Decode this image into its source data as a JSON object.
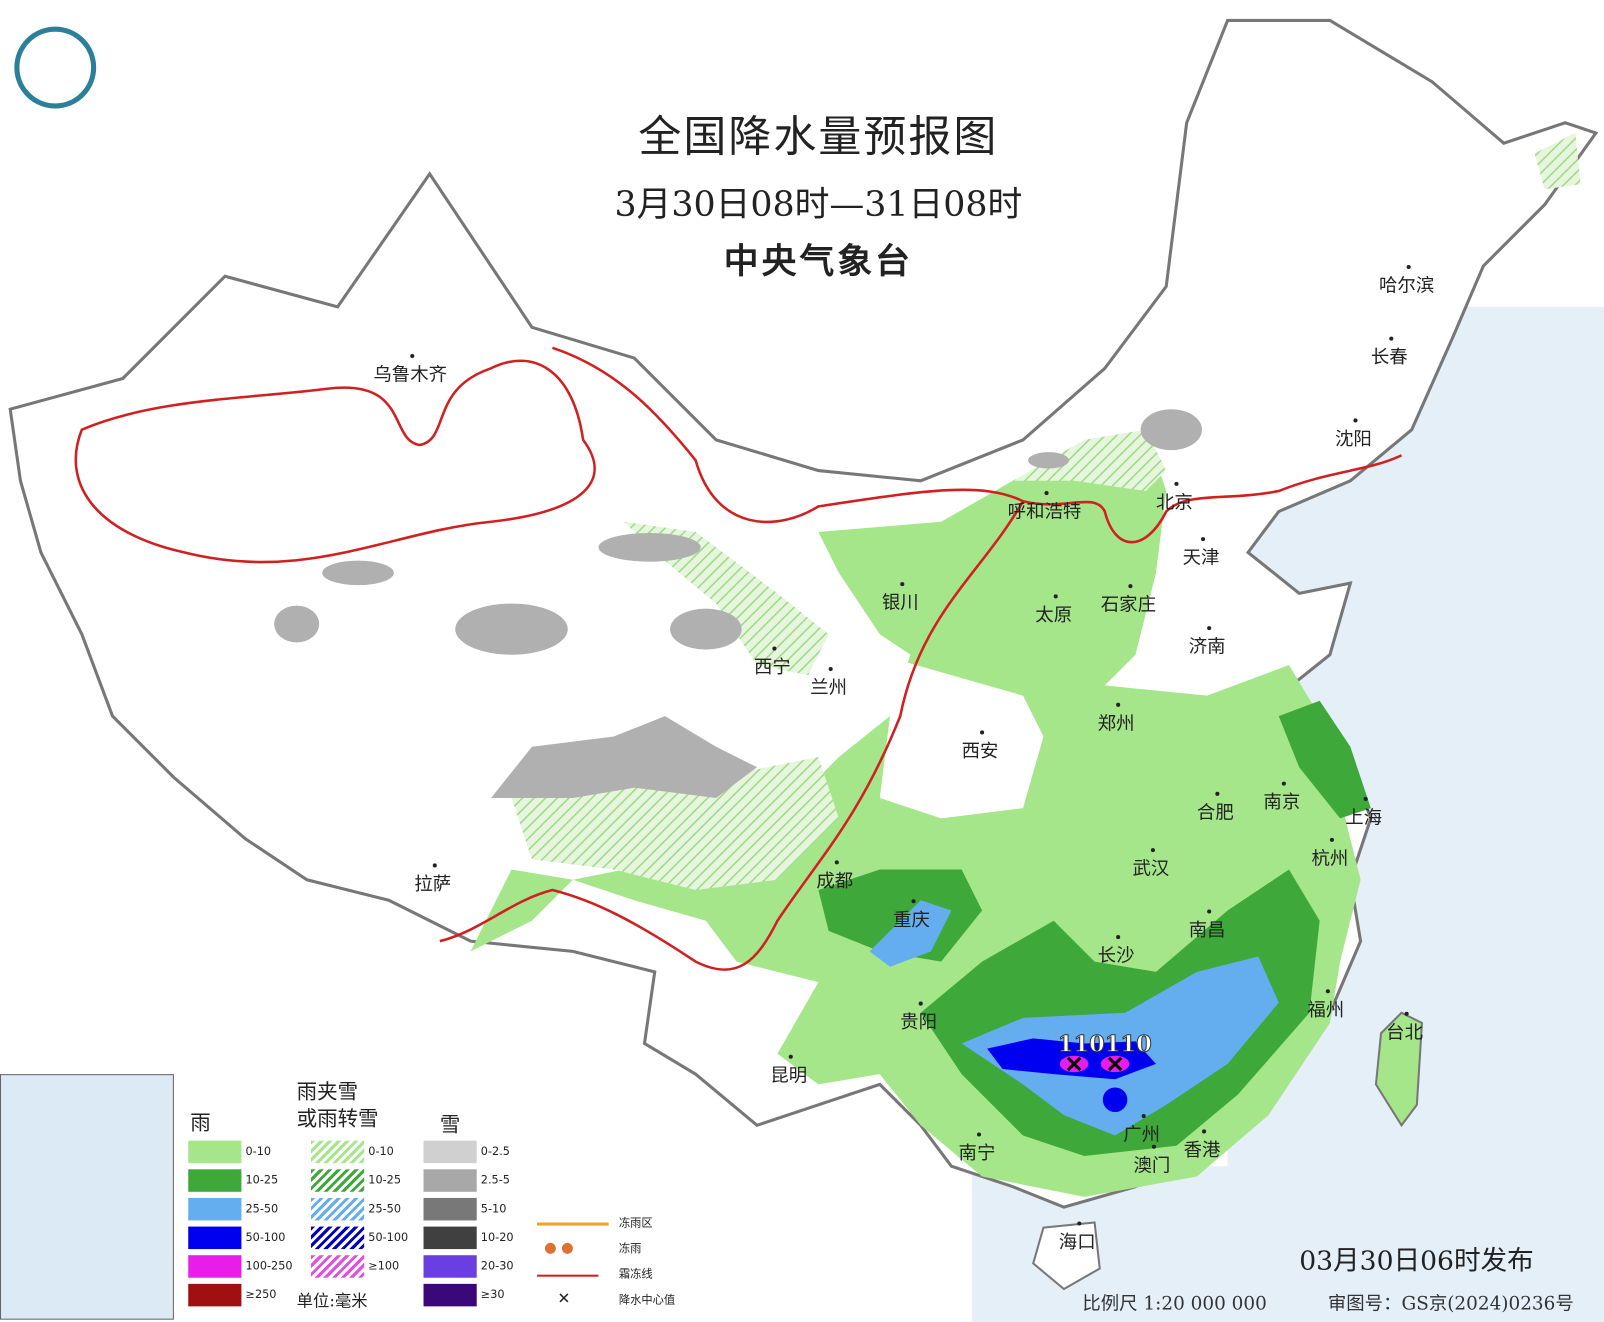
{
  "title": "全国降水量预报图",
  "period": "3月30日08时—31日08时",
  "agency": "中央气象台",
  "published": "03月30日06时发布",
  "scale": "比例尺 1:20 000 000",
  "approval": "审图号：GS京(2024)0236号",
  "center_value": "110110",
  "cities": [
    "乌鲁木齐",
    "哈尔滨",
    "长春",
    "沈阳",
    "北京",
    "天津",
    "呼和浩特",
    "石家庄",
    "太原",
    "济南",
    "银川",
    "西宁",
    "兰州",
    "西安",
    "郑州",
    "合肥",
    "南京",
    "上海",
    "杭州",
    "武汉",
    "成都",
    "重庆",
    "拉萨",
    "长沙",
    "南昌",
    "贵阳",
    "福州",
    "台北",
    "昆明",
    "南宁",
    "广州",
    "澳门",
    "香港",
    "海口"
  ],
  "legend": {
    "rain": {
      "heading": "雨",
      "items": [
        {
          "label": "0-10",
          "color": "#a6e68a"
        },
        {
          "label": "10-25",
          "color": "#3fa83a"
        },
        {
          "label": "25-50",
          "color": "#64aef0"
        },
        {
          "label": "50-100",
          "color": "#0000f0"
        },
        {
          "label": "100-250",
          "color": "#e81ee8"
        },
        {
          "label": "≥250",
          "color": "#a01010"
        }
      ]
    },
    "sleet": {
      "heading1": "雨夹雪",
      "heading2": "或雨转雪",
      "items": [
        {
          "label": "0-10",
          "color": "#a6e68a"
        },
        {
          "label": "10-25",
          "color": "#3fa83a"
        },
        {
          "label": "25-50",
          "color": "#64aef0"
        },
        {
          "label": "50-100",
          "color": "#0000c0"
        },
        {
          "label": "≥100",
          "color": "#e050e0"
        }
      ]
    },
    "snow": {
      "heading": "雪",
      "items": [
        {
          "label": "0-2.5",
          "color": "#d0d0d0"
        },
        {
          "label": "2.5-5",
          "color": "#a8a8a8"
        },
        {
          "label": "5-10",
          "color": "#787878"
        },
        {
          "label": "10-20",
          "color": "#404040"
        },
        {
          "label": "20-30",
          "color": "#6a3ee0"
        },
        {
          "label": "≥30",
          "color": "#3a0878"
        }
      ]
    },
    "unit": "单位:毫米",
    "freezing_rain_area": "冻雨区",
    "freezing_rain": "冻雨",
    "frost_line": "霜冻线",
    "precip_center": "降水中心值"
  }
}
